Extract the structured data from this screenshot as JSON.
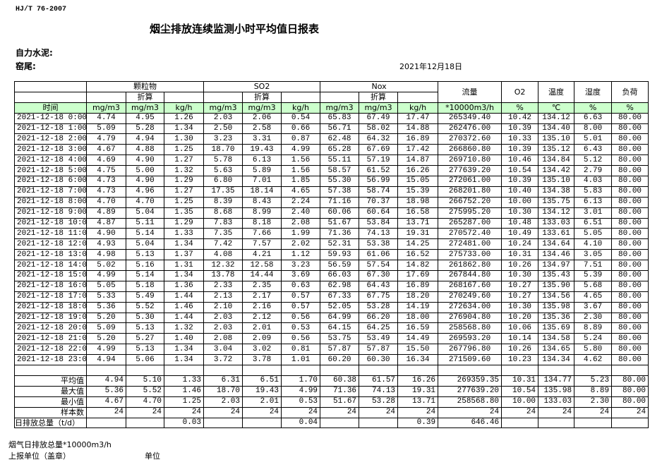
{
  "standard": "HJ/T  76-2007",
  "title": "烟尘排放连续监测小时平均值日报表",
  "company_label": "自力水泥:",
  "kiln_label": "窑尾:",
  "date": "2021年12月18日",
  "header": {
    "groups": [
      "颗粒物",
      "SO2",
      "Nox"
    ],
    "converted": "折算",
    "flow": "流量",
    "o2": "O2",
    "temp": "温度",
    "humidity": "湿度",
    "load": "负荷",
    "time": "时间",
    "units": [
      "mg/m3",
      "mg/m3",
      "kg/h",
      "mg/m3",
      "mg/m3",
      "kg/h",
      "mg/m3",
      "mg/m3",
      "kg/h",
      "*10000m3/h",
      "%",
      "℃",
      "%",
      "%"
    ]
  },
  "header_color": "#ccffcc",
  "rows": [
    [
      "2021-12-18 0:00",
      "4.74",
      "4.95",
      "1.26",
      "2.03",
      "2.06",
      "0.54",
      "65.83",
      "67.49",
      "17.47",
      "265349.40",
      "10.42",
      "134.12",
      "6.63",
      "80.00"
    ],
    [
      "2021-12-18 1:00",
      "5.09",
      "5.28",
      "1.34",
      "2.50",
      "2.58",
      "0.66",
      "56.71",
      "58.02",
      "14.88",
      "262476.00",
      "10.39",
      "134.40",
      "8.00",
      "80.00"
    ],
    [
      "2021-12-18 2:00",
      "4.79",
      "4.94",
      "1.30",
      "3.23",
      "3.31",
      "0.87",
      "62.48",
      "64.32",
      "16.89",
      "270372.60",
      "10.33",
      "135.10",
      "5.01",
      "80.00"
    ],
    [
      "2021-12-18 3:00",
      "4.67",
      "4.88",
      "1.25",
      "18.70",
      "19.43",
      "4.99",
      "65.28",
      "67.69",
      "17.42",
      "266860.80",
      "10.39",
      "135.12",
      "6.43",
      "80.00"
    ],
    [
      "2021-12-18 4:00",
      "4.69",
      "4.90",
      "1.27",
      "5.78",
      "6.13",
      "1.56",
      "55.11",
      "57.19",
      "14.87",
      "269710.80",
      "10.46",
      "134.84",
      "5.12",
      "80.00"
    ],
    [
      "2021-12-18 5:00",
      "4.75",
      "5.00",
      "1.32",
      "5.63",
      "5.89",
      "1.56",
      "58.57",
      "61.52",
      "16.26",
      "277639.20",
      "10.54",
      "134.42",
      "2.79",
      "80.00"
    ],
    [
      "2021-12-18 6:00",
      "4.73",
      "4.90",
      "1.29",
      "6.80",
      "7.01",
      "1.85",
      "55.30",
      "56.99",
      "15.05",
      "272061.00",
      "10.39",
      "135.10",
      "4.03",
      "80.00"
    ],
    [
      "2021-12-18 7:00",
      "4.73",
      "4.96",
      "1.27",
      "17.35",
      "18.14",
      "4.65",
      "57.38",
      "58.74",
      "15.39",
      "268201.80",
      "10.40",
      "134.38",
      "5.83",
      "80.00"
    ],
    [
      "2021-12-18 8:00",
      "4.70",
      "4.70",
      "1.25",
      "8.39",
      "8.43",
      "2.24",
      "71.16",
      "70.37",
      "18.98",
      "266752.20",
      "10.00",
      "135.75",
      "6.13",
      "80.00"
    ],
    [
      "2021-12-18 9:00",
      "4.89",
      "5.04",
      "1.35",
      "8.68",
      "8.99",
      "2.40",
      "60.06",
      "60.64",
      "16.58",
      "275995.20",
      "10.30",
      "134.12",
      "3.01",
      "80.00"
    ],
    [
      "2021-12-18 10:00",
      "4.87",
      "5.11",
      "1.29",
      "7.83",
      "8.18",
      "2.08",
      "51.67",
      "53.84",
      "13.71",
      "265287.00",
      "10.48",
      "133.03",
      "6.51",
      "80.00"
    ],
    [
      "2021-12-18 11:00",
      "4.90",
      "5.14",
      "1.33",
      "7.35",
      "7.66",
      "1.99",
      "71.36",
      "74.13",
      "19.31",
      "270572.40",
      "10.49",
      "133.61",
      "5.05",
      "80.00"
    ],
    [
      "2021-12-18 12:00",
      "4.93",
      "5.04",
      "1.34",
      "7.42",
      "7.57",
      "2.02",
      "52.31",
      "53.38",
      "14.25",
      "272481.00",
      "10.24",
      "134.64",
      "4.10",
      "80.00"
    ],
    [
      "2021-12-18 13:00",
      "4.98",
      "5.13",
      "1.37",
      "4.08",
      "4.21",
      "1.12",
      "59.93",
      "61.06",
      "16.52",
      "275733.00",
      "10.31",
      "134.46",
      "3.05",
      "80.00"
    ],
    [
      "2021-12-18 14:00",
      "5.02",
      "5.16",
      "1.31",
      "12.32",
      "12.58",
      "3.23",
      "56.59",
      "57.54",
      "14.82",
      "261862.80",
      "10.26",
      "134.97",
      "7.51",
      "80.00"
    ],
    [
      "2021-12-18 15:00",
      "4.99",
      "5.14",
      "1.34",
      "13.78",
      "14.44",
      "3.69",
      "66.03",
      "67.30",
      "17.69",
      "267844.80",
      "10.30",
      "135.43",
      "5.39",
      "80.00"
    ],
    [
      "2021-12-18 16:00",
      "5.05",
      "5.18",
      "1.36",
      "2.33",
      "2.35",
      "0.63",
      "62.98",
      "64.43",
      "16.89",
      "268167.60",
      "10.27",
      "135.90",
      "5.68",
      "80.00"
    ],
    [
      "2021-12-18 17:00",
      "5.33",
      "5.49",
      "1.44",
      "2.13",
      "2.17",
      "0.57",
      "67.33",
      "67.75",
      "18.20",
      "270249.60",
      "10.27",
      "134.56",
      "4.65",
      "80.00"
    ],
    [
      "2021-12-18 18:00",
      "5.36",
      "5.52",
      "1.46",
      "2.10",
      "2.16",
      "0.57",
      "52.05",
      "53.28",
      "14.19",
      "272634.00",
      "10.30",
      "135.98",
      "3.67",
      "80.00"
    ],
    [
      "2021-12-18 19:00",
      "5.20",
      "5.30",
      "1.44",
      "2.03",
      "2.12",
      "0.56",
      "64.99",
      "66.20",
      "18.00",
      "276904.80",
      "10.20",
      "135.36",
      "2.30",
      "80.00"
    ],
    [
      "2021-12-18 20:00",
      "5.09",
      "5.13",
      "1.32",
      "2.03",
      "2.01",
      "0.53",
      "64.15",
      "64.25",
      "16.59",
      "258568.80",
      "10.06",
      "135.69",
      "8.89",
      "80.00"
    ],
    [
      "2021-12-18 21:00",
      "5.20",
      "5.27",
      "1.40",
      "2.08",
      "2.09",
      "0.56",
      "53.75",
      "53.49",
      "14.49",
      "269593.20",
      "10.14",
      "134.58",
      "5.24",
      "80.00"
    ],
    [
      "2021-12-18 22:00",
      "4.99",
      "5.13",
      "1.34",
      "3.04",
      "3.02",
      "0.81",
      "57.87",
      "57.87",
      "15.50",
      "267796.80",
      "10.26",
      "134.65",
      "5.80",
      "80.00"
    ],
    [
      "2021-12-18 23:00",
      "4.94",
      "5.06",
      "1.34",
      "3.72",
      "3.78",
      "1.01",
      "60.20",
      "60.30",
      "16.34",
      "271509.60",
      "10.23",
      "134.34",
      "4.62",
      "80.00"
    ]
  ],
  "summary": [
    {
      "label": "平均值",
      "values": [
        "4.94",
        "5.10",
        "1.33",
        "6.31",
        "6.51",
        "1.70",
        "60.38",
        "61.57",
        "16.26",
        "269359.35",
        "10.31",
        "134.77",
        "5.23",
        "80.00"
      ]
    },
    {
      "label": "最大值",
      "values": [
        "5.36",
        "5.52",
        "1.46",
        "18.70",
        "19.43",
        "4.99",
        "71.36",
        "74.13",
        "19.31",
        "277639.20",
        "10.54",
        "135.98",
        "8.89",
        "80.00"
      ]
    },
    {
      "label": "最小值",
      "values": [
        "4.67",
        "4.70",
        "1.25",
        "2.03",
        "2.01",
        "0.53",
        "51.67",
        "53.28",
        "13.71",
        "258568.80",
        "10.00",
        "133.03",
        "2.30",
        "80.00"
      ]
    },
    {
      "label": "样本数",
      "values": [
        "24",
        "24",
        "24",
        "24",
        "24",
        "24",
        "24",
        "24",
        "24",
        "24",
        "24",
        "24",
        "24",
        "24"
      ]
    }
  ],
  "daily_total": {
    "label": "日排放总量（t/d）",
    "values": [
      "",
      "",
      "0.03",
      "",
      "",
      "0.04",
      "",
      "",
      "0.39",
      "646.46",
      "",
      "",
      "",
      ""
    ]
  },
  "footer": {
    "flue_gas_total": "烟气日排放总量*10000m3/h",
    "reporting_unit": "上报单位（盖章）",
    "unit": "单位"
  }
}
